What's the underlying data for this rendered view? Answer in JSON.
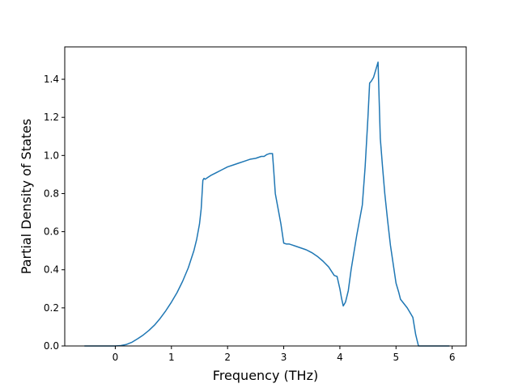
{
  "colors": {
    "series": "#1f77b4",
    "axes": "#000000",
    "background": "#ffffff"
  },
  "chart_data": {
    "type": "line",
    "title": "",
    "xlabel": "Frequency (THz)",
    "ylabel": "Partial Density of States",
    "xlim": [
      -0.9,
      6.25
    ],
    "ylim": [
      0,
      1.57
    ],
    "xticks": [
      0,
      1,
      2,
      3,
      4,
      5,
      6
    ],
    "xtick_labels": [
      "0",
      "1",
      "2",
      "3",
      "4",
      "5",
      "6"
    ],
    "yticks": [
      0,
      0.2,
      0.4,
      0.6,
      0.8,
      1.0,
      1.2,
      1.4
    ],
    "ytick_labels": [
      "0.0",
      "0.2",
      "0.4",
      "0.6",
      "0.8",
      "1.0",
      "1.2",
      "1.4"
    ],
    "grid": false,
    "legend": "none",
    "series": [
      {
        "x": [
          -0.55,
          -0.3,
          0.0,
          0.1,
          0.2,
          0.3,
          0.4,
          0.5,
          0.6,
          0.7,
          0.8,
          0.9,
          1.0,
          1.1,
          1.2,
          1.3,
          1.4,
          1.45,
          1.5,
          1.53,
          1.56,
          1.58,
          1.6,
          1.65,
          1.7,
          1.8,
          1.9,
          2.0,
          2.1,
          2.2,
          2.3,
          2.4,
          2.5,
          2.6,
          2.65,
          2.7,
          2.75,
          2.8,
          2.82,
          2.85,
          2.9,
          2.95,
          3.0,
          3.05,
          3.1,
          3.15,
          3.2,
          3.3,
          3.4,
          3.5,
          3.6,
          3.7,
          3.8,
          3.9,
          3.95,
          4.0,
          4.03,
          4.06,
          4.1,
          4.15,
          4.2,
          4.3,
          4.4,
          4.45,
          4.5,
          4.53,
          4.56,
          4.6,
          4.65,
          4.68,
          4.72,
          4.76,
          4.8,
          4.85,
          4.9,
          5.0,
          5.05,
          5.08,
          5.2,
          5.3,
          5.35,
          5.4,
          5.45,
          5.6,
          5.8,
          5.95
        ],
        "y": [
          0.0,
          0.0,
          0.0,
          0.002,
          0.008,
          0.02,
          0.038,
          0.058,
          0.082,
          0.11,
          0.145,
          0.185,
          0.23,
          0.28,
          0.34,
          0.41,
          0.5,
          0.56,
          0.64,
          0.72,
          0.87,
          0.88,
          0.875,
          0.885,
          0.895,
          0.91,
          0.925,
          0.94,
          0.95,
          0.96,
          0.97,
          0.98,
          0.985,
          0.995,
          0.995,
          1.005,
          1.01,
          1.01,
          0.93,
          0.8,
          0.72,
          0.64,
          0.54,
          0.535,
          0.535,
          0.53,
          0.525,
          0.515,
          0.505,
          0.49,
          0.47,
          0.445,
          0.415,
          0.37,
          0.365,
          0.3,
          0.25,
          0.21,
          0.23,
          0.29,
          0.4,
          0.58,
          0.74,
          0.94,
          1.2,
          1.38,
          1.39,
          1.41,
          1.46,
          1.49,
          1.09,
          0.94,
          0.8,
          0.66,
          0.53,
          0.33,
          0.28,
          0.245,
          0.2,
          0.15,
          0.06,
          0.0,
          0.0,
          0.0,
          0.0,
          0.0
        ]
      }
    ]
  }
}
